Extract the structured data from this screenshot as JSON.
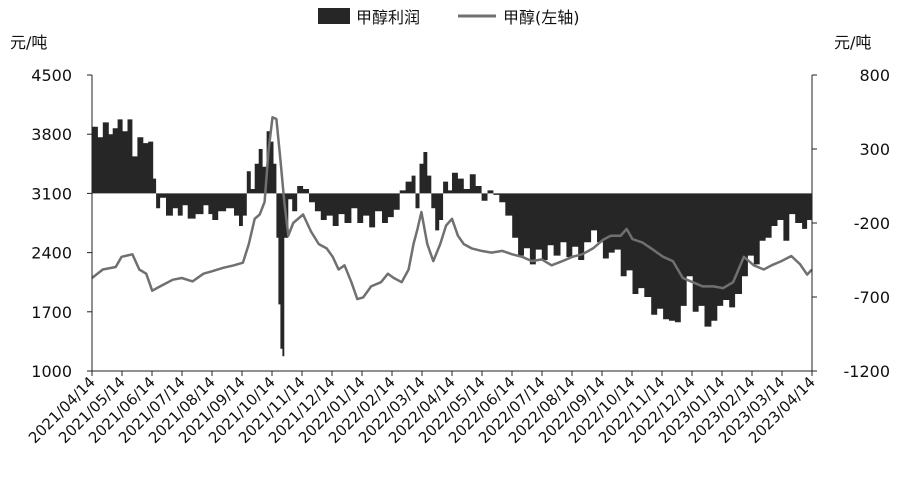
{
  "chart_data": {
    "type": "bar",
    "title": "",
    "legend": [
      {
        "label": "甲醇利润",
        "kind": "area",
        "color": "#262626",
        "axis": "right"
      },
      {
        "label": "甲醇(左轴)",
        "kind": "line",
        "color": "#707070",
        "axis": "left"
      }
    ],
    "legend_position": "top-center",
    "left_axis": {
      "unit": "元/吨",
      "ylim": [
        1000,
        4500
      ],
      "ticks": [
        1000,
        1700,
        2400,
        3100,
        3800,
        4500
      ]
    },
    "right_axis": {
      "unit": "元/吨",
      "ylim": [
        -1200,
        800
      ],
      "ticks": [
        -1200,
        -700,
        -200,
        300,
        800
      ]
    },
    "x_tick_labels": [
      "2021/04/14",
      "2021/05/14",
      "2021/06/14",
      "2021/07/14",
      "2021/08/14",
      "2021/09/14",
      "2021/10/14",
      "2021/11/14",
      "2021/12/14",
      "2022/01/14",
      "2022/02/14",
      "2022/03/14",
      "2022/04/14",
      "2022/05/14",
      "2022/06/14",
      "2022/07/14",
      "2022/08/14",
      "2022/09/14",
      "2022/10/14",
      "2022/11/14",
      "2022/12/14",
      "2023/01/14",
      "2023/02/14",
      "2023/03/14",
      "2023/04/14"
    ],
    "grid": false,
    "series": [
      {
        "name": "甲醇利润",
        "axis": "right",
        "points": [
          [
            "2021-04-14",
            450
          ],
          [
            "2021-04-20",
            380
          ],
          [
            "2021-04-25",
            480
          ],
          [
            "2021-05-01",
            400
          ],
          [
            "2021-05-05",
            440
          ],
          [
            "2021-05-10",
            500
          ],
          [
            "2021-05-15",
            420
          ],
          [
            "2021-05-20",
            500
          ],
          [
            "2021-05-25",
            250
          ],
          [
            "2021-05-30",
            380
          ],
          [
            "2021-06-05",
            340
          ],
          [
            "2021-06-10",
            350
          ],
          [
            "2021-06-15",
            100
          ],
          [
            "2021-06-18",
            -100
          ],
          [
            "2021-06-22",
            -30
          ],
          [
            "2021-06-28",
            -150
          ],
          [
            "2021-07-05",
            -100
          ],
          [
            "2021-07-10",
            -150
          ],
          [
            "2021-07-15",
            -80
          ],
          [
            "2021-07-20",
            -170
          ],
          [
            "2021-07-28",
            -140
          ],
          [
            "2021-08-05",
            -80
          ],
          [
            "2021-08-10",
            -140
          ],
          [
            "2021-08-14",
            -180
          ],
          [
            "2021-08-20",
            -120
          ],
          [
            "2021-08-28",
            -100
          ],
          [
            "2021-09-05",
            -150
          ],
          [
            "2021-09-10",
            -220
          ],
          [
            "2021-09-14",
            -150
          ],
          [
            "2021-09-18",
            150
          ],
          [
            "2021-09-22",
            30
          ],
          [
            "2021-09-26",
            200
          ],
          [
            "2021-09-30",
            300
          ],
          [
            "2021-10-04",
            180
          ],
          [
            "2021-10-08",
            420
          ],
          [
            "2021-10-12",
            350
          ],
          [
            "2021-10-15",
            200
          ],
          [
            "2021-10-18",
            -300
          ],
          [
            "2021-10-20",
            -750
          ],
          [
            "2021-10-22",
            -1050
          ],
          [
            "2021-10-24",
            -1100
          ],
          [
            "2021-10-26",
            -300
          ],
          [
            "2021-10-30",
            -40
          ],
          [
            "2021-11-03",
            -120
          ],
          [
            "2021-11-08",
            50
          ],
          [
            "2021-11-14",
            30
          ],
          [
            "2021-11-20",
            -60
          ],
          [
            "2021-11-26",
            -120
          ],
          [
            "2021-12-02",
            -180
          ],
          [
            "2021-12-08",
            -150
          ],
          [
            "2021-12-14",
            -220
          ],
          [
            "2021-12-20",
            -140
          ],
          [
            "2021-12-26",
            -200
          ],
          [
            "2022-01-02",
            -100
          ],
          [
            "2022-01-08",
            -200
          ],
          [
            "2022-01-14",
            -150
          ],
          [
            "2022-01-20",
            -230
          ],
          [
            "2022-01-26",
            -120
          ],
          [
            "2022-02-02",
            -200
          ],
          [
            "2022-02-08",
            -160
          ],
          [
            "2022-02-14",
            -110
          ],
          [
            "2022-02-20",
            20
          ],
          [
            "2022-02-26",
            80
          ],
          [
            "2022-03-04",
            120
          ],
          [
            "2022-03-08",
            -100
          ],
          [
            "2022-03-12",
            200
          ],
          [
            "2022-03-16",
            280
          ],
          [
            "2022-03-20",
            120
          ],
          [
            "2022-03-24",
            -100
          ],
          [
            "2022-03-28",
            -250
          ],
          [
            "2022-04-01",
            -180
          ],
          [
            "2022-04-05",
            80
          ],
          [
            "2022-04-10",
            20
          ],
          [
            "2022-04-14",
            140
          ],
          [
            "2022-04-20",
            100
          ],
          [
            "2022-04-26",
            30
          ],
          [
            "2022-05-02",
            130
          ],
          [
            "2022-05-08",
            50
          ],
          [
            "2022-05-14",
            -50
          ],
          [
            "2022-05-20",
            20
          ],
          [
            "2022-05-26",
            -10
          ],
          [
            "2022-06-01",
            -60
          ],
          [
            "2022-06-07",
            -150
          ],
          [
            "2022-06-14",
            -300
          ],
          [
            "2022-06-20",
            -420
          ],
          [
            "2022-06-26",
            -370
          ],
          [
            "2022-07-02",
            -480
          ],
          [
            "2022-07-08",
            -380
          ],
          [
            "2022-07-14",
            -450
          ],
          [
            "2022-07-20",
            -350
          ],
          [
            "2022-07-26",
            -420
          ],
          [
            "2022-08-02",
            -330
          ],
          [
            "2022-08-08",
            -430
          ],
          [
            "2022-08-14",
            -360
          ],
          [
            "2022-08-20",
            -450
          ],
          [
            "2022-08-26",
            -330
          ],
          [
            "2022-09-02",
            -250
          ],
          [
            "2022-09-08",
            -330
          ],
          [
            "2022-09-14",
            -440
          ],
          [
            "2022-09-20",
            -400
          ],
          [
            "2022-09-26",
            -380
          ],
          [
            "2022-10-02",
            -560
          ],
          [
            "2022-10-08",
            -520
          ],
          [
            "2022-10-14",
            -680
          ],
          [
            "2022-10-20",
            -640
          ],
          [
            "2022-10-26",
            -700
          ],
          [
            "2022-11-02",
            -820
          ],
          [
            "2022-11-08",
            -780
          ],
          [
            "2022-11-14",
            -850
          ],
          [
            "2022-11-20",
            -860
          ],
          [
            "2022-11-26",
            -870
          ],
          [
            "2022-12-02",
            -760
          ],
          [
            "2022-12-08",
            -560
          ],
          [
            "2022-12-14",
            -800
          ],
          [
            "2022-12-20",
            -760
          ],
          [
            "2022-12-26",
            -900
          ],
          [
            "2023-01-02",
            -860
          ],
          [
            "2023-01-08",
            -760
          ],
          [
            "2023-01-14",
            -720
          ],
          [
            "2023-01-20",
            -770
          ],
          [
            "2023-01-26",
            -680
          ],
          [
            "2023-02-02",
            -560
          ],
          [
            "2023-02-08",
            -420
          ],
          [
            "2023-02-14",
            -480
          ],
          [
            "2023-02-20",
            -320
          ],
          [
            "2023-02-26",
            -300
          ],
          [
            "2023-03-04",
            -220
          ],
          [
            "2023-03-10",
            -180
          ],
          [
            "2023-03-16",
            -320
          ],
          [
            "2023-03-22",
            -140
          ],
          [
            "2023-03-28",
            -200
          ],
          [
            "2023-04-04",
            -240
          ],
          [
            "2023-04-09",
            -180
          ],
          [
            "2023-04-14",
            -230
          ]
        ]
      },
      {
        "name": "甲醇(左轴)",
        "axis": "left",
        "points": [
          [
            "2021-04-14",
            2100
          ],
          [
            "2021-04-25",
            2200
          ],
          [
            "2021-05-08",
            2230
          ],
          [
            "2021-05-14",
            2350
          ],
          [
            "2021-05-25",
            2380
          ],
          [
            "2021-06-01",
            2200
          ],
          [
            "2021-06-08",
            2150
          ],
          [
            "2021-06-14",
            1950
          ],
          [
            "2021-06-22",
            2000
          ],
          [
            "2021-07-05",
            2080
          ],
          [
            "2021-07-14",
            2100
          ],
          [
            "2021-07-25",
            2060
          ],
          [
            "2021-08-05",
            2150
          ],
          [
            "2021-08-14",
            2180
          ],
          [
            "2021-08-25",
            2220
          ],
          [
            "2021-09-05",
            2250
          ],
          [
            "2021-09-14",
            2280
          ],
          [
            "2021-09-20",
            2500
          ],
          [
            "2021-09-26",
            2800
          ],
          [
            "2021-10-01",
            2850
          ],
          [
            "2021-10-06",
            3000
          ],
          [
            "2021-10-10",
            3600
          ],
          [
            "2021-10-14",
            4000
          ],
          [
            "2021-10-18",
            3980
          ],
          [
            "2021-10-22",
            3500
          ],
          [
            "2021-10-26",
            3000
          ],
          [
            "2021-10-30",
            2600
          ],
          [
            "2021-11-04",
            2750
          ],
          [
            "2021-11-14",
            2850
          ],
          [
            "2021-11-22",
            2650
          ],
          [
            "2021-11-30",
            2500
          ],
          [
            "2021-12-08",
            2450
          ],
          [
            "2021-12-14",
            2350
          ],
          [
            "2021-12-20",
            2200
          ],
          [
            "2021-12-26",
            2250
          ],
          [
            "2022-01-02",
            2050
          ],
          [
            "2022-01-08",
            1850
          ],
          [
            "2022-01-14",
            1870
          ],
          [
            "2022-01-22",
            2000
          ],
          [
            "2022-02-01",
            2050
          ],
          [
            "2022-02-08",
            2150
          ],
          [
            "2022-02-14",
            2100
          ],
          [
            "2022-02-22",
            2050
          ],
          [
            "2022-03-01",
            2200
          ],
          [
            "2022-03-06",
            2500
          ],
          [
            "2022-03-10",
            2680
          ],
          [
            "2022-03-14",
            2880
          ],
          [
            "2022-03-20",
            2500
          ],
          [
            "2022-03-26",
            2300
          ],
          [
            "2022-04-02",
            2500
          ],
          [
            "2022-04-08",
            2720
          ],
          [
            "2022-04-14",
            2800
          ],
          [
            "2022-04-20",
            2600
          ],
          [
            "2022-04-26",
            2500
          ],
          [
            "2022-05-04",
            2450
          ],
          [
            "2022-05-14",
            2420
          ],
          [
            "2022-05-24",
            2400
          ],
          [
            "2022-06-04",
            2420
          ],
          [
            "2022-06-14",
            2380
          ],
          [
            "2022-06-24",
            2350
          ],
          [
            "2022-07-04",
            2300
          ],
          [
            "2022-07-14",
            2320
          ],
          [
            "2022-07-24",
            2250
          ],
          [
            "2022-08-04",
            2300
          ],
          [
            "2022-08-14",
            2350
          ],
          [
            "2022-08-24",
            2380
          ],
          [
            "2022-09-04",
            2450
          ],
          [
            "2022-09-14",
            2550
          ],
          [
            "2022-09-22",
            2600
          ],
          [
            "2022-10-02",
            2600
          ],
          [
            "2022-10-08",
            2680
          ],
          [
            "2022-10-14",
            2560
          ],
          [
            "2022-10-24",
            2520
          ],
          [
            "2022-11-02",
            2450
          ],
          [
            "2022-11-14",
            2350
          ],
          [
            "2022-11-24",
            2300
          ],
          [
            "2022-12-04",
            2100
          ],
          [
            "2022-12-14",
            2050
          ],
          [
            "2022-12-24",
            2000
          ],
          [
            "2023-01-04",
            2000
          ],
          [
            "2023-01-14",
            1980
          ],
          [
            "2023-01-24",
            2050
          ],
          [
            "2023-02-04",
            2350
          ],
          [
            "2023-02-14",
            2250
          ],
          [
            "2023-02-24",
            2200
          ],
          [
            "2023-03-04",
            2250
          ],
          [
            "2023-03-14",
            2300
          ],
          [
            "2023-03-24",
            2360
          ],
          [
            "2023-04-02",
            2260
          ],
          [
            "2023-04-09",
            2140
          ],
          [
            "2023-04-14",
            2200
          ]
        ]
      }
    ]
  }
}
